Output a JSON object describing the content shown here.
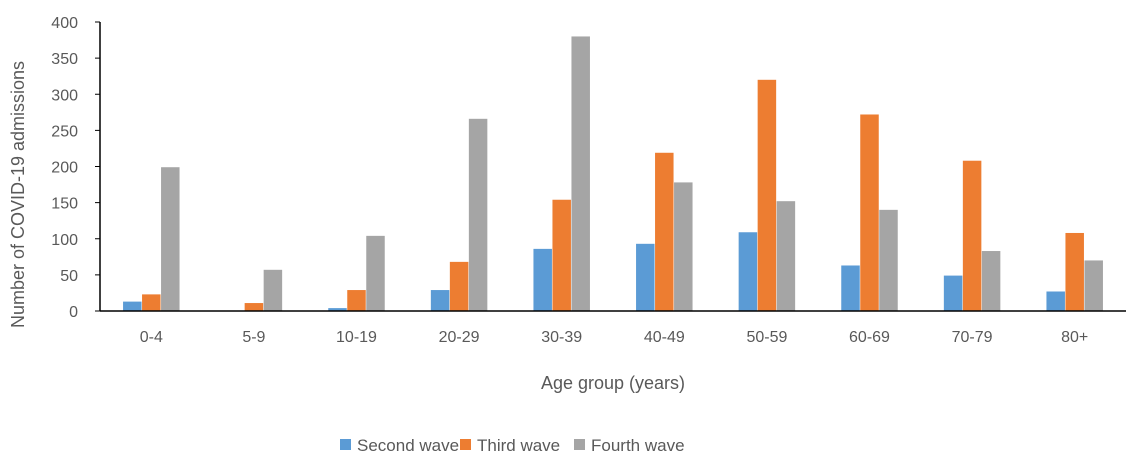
{
  "chart_data": {
    "type": "bar",
    "xlabel": "Age group (years)",
    "ylabel": "Number of COVID-19 admissions",
    "ylim": [
      0,
      400
    ],
    "yticks": [
      0,
      50,
      100,
      150,
      200,
      250,
      300,
      350,
      400
    ],
    "grid": false,
    "legend_position": "bottom",
    "categories": [
      "0-4",
      "5-9",
      "10-19",
      "20-29",
      "30-39",
      "40-49",
      "50-59",
      "60-69",
      "70-79",
      "80+"
    ],
    "series": [
      {
        "name": "Second wave",
        "color": "#5B9BD5",
        "values": [
          13,
          0,
          4,
          29,
          86,
          93,
          109,
          63,
          49,
          27
        ]
      },
      {
        "name": "Third wave",
        "color": "#ED7D31",
        "values": [
          23,
          11,
          29,
          68,
          154,
          219,
          320,
          272,
          208,
          108
        ]
      },
      {
        "name": "Fourth wave",
        "color": "#A5A5A5",
        "values": [
          199,
          57,
          104,
          266,
          380,
          178,
          152,
          140,
          83,
          70
        ]
      }
    ]
  }
}
